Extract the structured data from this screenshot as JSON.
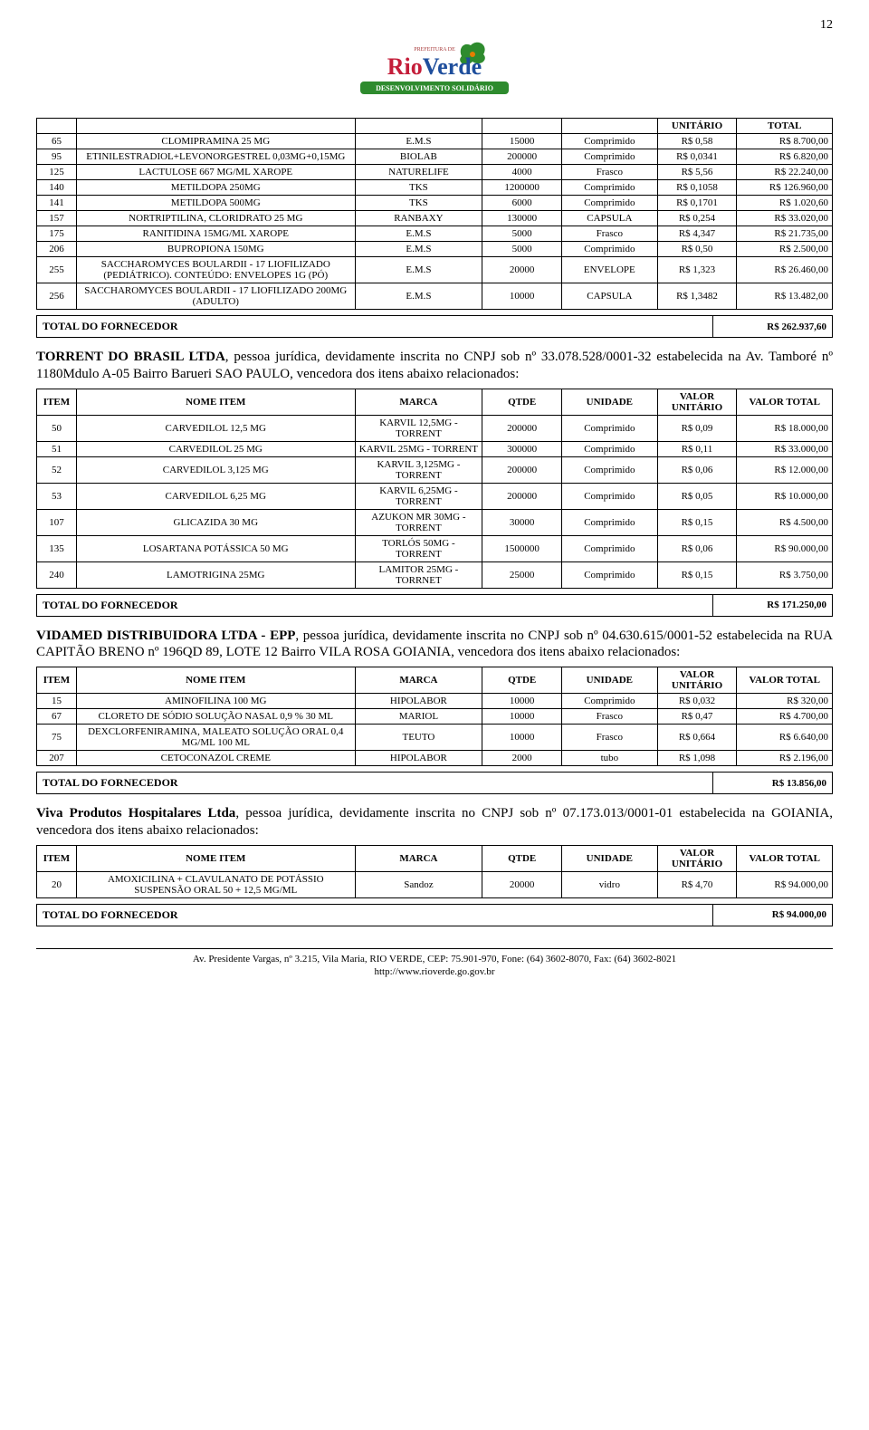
{
  "page_number": "12",
  "logo": {
    "main": "RioVerde",
    "sub": "DESENVOLVIMENTO SOLIDÁRIO",
    "prefeitura": "PREFEITURA DE",
    "colors": {
      "r": "#c41e3a",
      "blue": "#1e4e9c",
      "green": "#2e8b2e",
      "orange": "#e67e00"
    }
  },
  "headers": {
    "item": "ITEM",
    "nome": "NOME ITEM",
    "marca": "MARCA",
    "qtde": "QTDE",
    "unidade": "UNIDADE",
    "vu": "VALOR UNITÁRIO",
    "vt": "VALOR TOTAL",
    "unit_label": "UNITÁRIO",
    "total_label": "TOTAL"
  },
  "total_fornecedor_label": "TOTAL DO FORNECEDOR",
  "section1": {
    "rows": [
      {
        "item": "65",
        "nome": "CLOMIPRAMINA 25 MG",
        "marca": "E.M.S",
        "qtde": "15000",
        "unid": "Comprimido",
        "vu": "R$ 0,58",
        "vt": "R$ 8.700,00"
      },
      {
        "item": "95",
        "nome": "ETINILESTRADIOL+LEVONORGESTREL 0,03MG+0,15MG",
        "marca": "BIOLAB",
        "qtde": "200000",
        "unid": "Comprimido",
        "vu": "R$ 0,0341",
        "vt": "R$ 6.820,00"
      },
      {
        "item": "125",
        "nome": "LACTULOSE 667 MG/ML XAROPE",
        "marca": "NATURELIFE",
        "qtde": "4000",
        "unid": "Frasco",
        "vu": "R$ 5,56",
        "vt": "R$ 22.240,00"
      },
      {
        "item": "140",
        "nome": "METILDOPA 250MG",
        "marca": "TKS",
        "qtde": "1200000",
        "unid": "Comprimido",
        "vu": "R$ 0,1058",
        "vt": "R$ 126.960,00"
      },
      {
        "item": "141",
        "nome": "METILDOPA 500MG",
        "marca": "TKS",
        "qtde": "6000",
        "unid": "Comprimido",
        "vu": "R$ 0,1701",
        "vt": "R$ 1.020,60"
      },
      {
        "item": "157",
        "nome": "NORTRIPTILINA, CLORIDRATO 25 MG",
        "marca": "RANBAXY",
        "qtde": "130000",
        "unid": "CAPSULA",
        "vu": "R$ 0,254",
        "vt": "R$ 33.020,00"
      },
      {
        "item": "175",
        "nome": "RANITIDINA 15MG/ML XAROPE",
        "marca": "E.M.S",
        "qtde": "5000",
        "unid": "Frasco",
        "vu": "R$ 4,347",
        "vt": "R$ 21.735,00"
      },
      {
        "item": "206",
        "nome": "BUPROPIONA 150MG",
        "marca": "E.M.S",
        "qtde": "5000",
        "unid": "Comprimido",
        "vu": "R$ 0,50",
        "vt": "R$ 2.500,00"
      },
      {
        "item": "255",
        "nome": "SACCHAROMYCES BOULARDII - 17 LIOFILIZADO (PEDIÁTRICO). CONTEÚDO: ENVELOPES 1G (PÓ)",
        "marca": "E.M.S",
        "qtde": "20000",
        "unid": "ENVELOPE",
        "vu": "R$ 1,323",
        "vt": "R$ 26.460,00"
      },
      {
        "item": "256",
        "nome": "SACCHAROMYCES BOULARDII - 17 LIOFILIZADO 200MG (ADULTO)",
        "marca": "E.M.S",
        "qtde": "10000",
        "unid": "CAPSULA",
        "vu": "R$ 1,3482",
        "vt": "R$ 13.482,00"
      }
    ],
    "total": "R$ 262.937,60"
  },
  "supplier2": {
    "text_parts": {
      "name": "TORRENT DO BRASIL LTDA",
      "mid": ", pessoa jurídica, devidamente inscrita no CNPJ sob nº 33.078.528/0001-32 estabelecida na Av. Tamboré nº 1180Mdulo A-05 Bairro Barueri SAO PAULO, vencedora dos itens abaixo relacionados:"
    },
    "rows": [
      {
        "item": "50",
        "nome": "CARVEDILOL 12,5 MG",
        "marca": "KARVIL 12,5MG - TORRENT",
        "qtde": "200000",
        "unid": "Comprimido",
        "vu": "R$ 0,09",
        "vt": "R$ 18.000,00"
      },
      {
        "item": "51",
        "nome": "CARVEDILOL 25 MG",
        "marca": "KARVIL 25MG - TORRENT",
        "qtde": "300000",
        "unid": "Comprimido",
        "vu": "R$ 0,11",
        "vt": "R$ 33.000,00"
      },
      {
        "item": "52",
        "nome": "CARVEDILOL 3,125 MG",
        "marca": "KARVIL 3,125MG - TORRENT",
        "qtde": "200000",
        "unid": "Comprimido",
        "vu": "R$ 0,06",
        "vt": "R$ 12.000,00"
      },
      {
        "item": "53",
        "nome": "CARVEDILOL 6,25 MG",
        "marca": "KARVIL 6,25MG - TORRENT",
        "qtde": "200000",
        "unid": "Comprimido",
        "vu": "R$ 0,05",
        "vt": "R$ 10.000,00"
      },
      {
        "item": "107",
        "nome": "GLICAZIDA 30 MG",
        "marca": "AZUKON MR 30MG - TORRENT",
        "qtde": "30000",
        "unid": "Comprimido",
        "vu": "R$ 0,15",
        "vt": "R$ 4.500,00"
      },
      {
        "item": "135",
        "nome": "LOSARTANA POTÁSSICA 50 MG",
        "marca": "TORLÓS 50MG - TORRENT",
        "qtde": "1500000",
        "unid": "Comprimido",
        "vu": "R$ 0,06",
        "vt": "R$ 90.000,00"
      },
      {
        "item": "240",
        "nome": "LAMOTRIGINA 25MG",
        "marca": "LAMITOR 25MG - TORRNET",
        "qtde": "25000",
        "unid": "Comprimido",
        "vu": "R$ 0,15",
        "vt": "R$ 3.750,00"
      }
    ],
    "total": "R$ 171.250,00"
  },
  "supplier3": {
    "text_parts": {
      "name": "VIDAMED DISTRIBUIDORA LTDA - EPP",
      "mid": ", pessoa jurídica, devidamente inscrita no CNPJ sob nº 04.630.615/0001-52 estabelecida na RUA CAPITÃO BRENO nº 196QD 89, LOTE 12 Bairro VILA ROSA GOIANIA, vencedora dos itens abaixo relacionados:"
    },
    "rows": [
      {
        "item": "15",
        "nome": "AMINOFILINA 100 MG",
        "marca": "HIPOLABOR",
        "qtde": "10000",
        "unid": "Comprimido",
        "vu": "R$ 0,032",
        "vt": "R$ 320,00"
      },
      {
        "item": "67",
        "nome": "CLORETO DE SÓDIO SOLUÇÃO NASAL 0,9 % 30 ML",
        "marca": "MARIOL",
        "qtde": "10000",
        "unid": "Frasco",
        "vu": "R$ 0,47",
        "vt": "R$ 4.700,00"
      },
      {
        "item": "75",
        "nome": "DEXCLORFENIRAMINA, MALEATO SOLUÇÃO ORAL 0,4 MG/ML 100 ML",
        "marca": "TEUTO",
        "qtde": "10000",
        "unid": "Frasco",
        "vu": "R$ 0,664",
        "vt": "R$ 6.640,00"
      },
      {
        "item": "207",
        "nome": "CETOCONAZOL CREME",
        "marca": "HIPOLABOR",
        "qtde": "2000",
        "unid": "tubo",
        "vu": "R$ 1,098",
        "vt": "R$ 2.196,00"
      }
    ],
    "total": "R$ 13.856,00"
  },
  "supplier4": {
    "text_parts": {
      "name": "Viva Produtos Hospitalares Ltda",
      "mid": ", pessoa jurídica, devidamente inscrita no CNPJ sob nº 07.173.013/0001-01 estabelecida na  GOIANIA, vencedora dos itens abaixo relacionados:"
    },
    "rows": [
      {
        "item": "20",
        "nome": "AMOXICILINA + CLAVULANATO DE POTÁSSIO SUSPENSÃO ORAL 50 + 12,5 MG/ML",
        "marca": "Sandoz",
        "qtde": "20000",
        "unid": "vidro",
        "vu": "R$ 4,70",
        "vt": "R$ 94.000,00"
      }
    ],
    "total": "R$ 94.000,00"
  },
  "footer": {
    "line1": "Av. Presidente Vargas, nº 3.215, Vila Maria, RIO VERDE, CEP: 75.901-970, Fone: (64) 3602-8070, Fax: (64) 3602-8021",
    "line2": "http://www.rioverde.go.gov.br"
  }
}
